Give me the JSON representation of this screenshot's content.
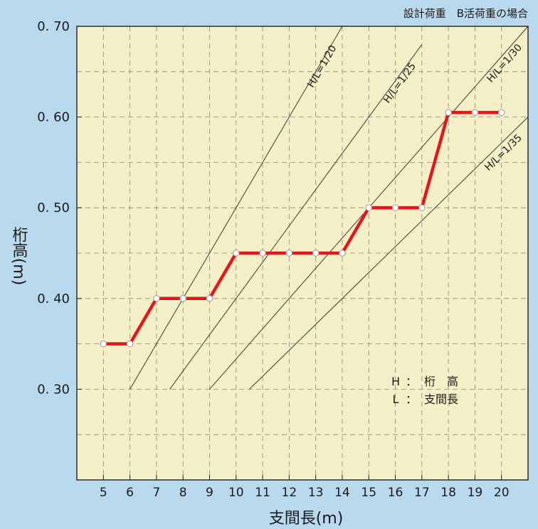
{
  "chart_data": {
    "type": "line",
    "subtitle": "設計荷重　B活荷重の場合",
    "xlabel": "支間長(m)",
    "ylabel": "桁高(m)",
    "x_ticks": [
      5,
      6,
      7,
      8,
      9,
      10,
      11,
      12,
      13,
      14,
      15,
      16,
      17,
      18,
      19,
      20
    ],
    "y_ticks": [
      {
        "value": 0.3,
        "label": "0. 30"
      },
      {
        "value": 0.4,
        "label": "0. 40"
      },
      {
        "value": 0.5,
        "label": "0. 50"
      },
      {
        "value": 0.6,
        "label": "0. 60"
      },
      {
        "value": 0.7,
        "label": "0. 70"
      }
    ],
    "xlim": [
      4,
      21
    ],
    "ylim": [
      0.2,
      0.7
    ],
    "grid": true,
    "colors": {
      "background": "#b9d9ee",
      "plot_area": "#f4efc6",
      "series": "#e8141b",
      "grid": "#8a8a78"
    },
    "series": [
      {
        "x": [
          5,
          6,
          7,
          8,
          9,
          10,
          11,
          12,
          13,
          14,
          15,
          16,
          17,
          18,
          19,
          20
        ],
        "values": [
          0.35,
          0.35,
          0.4,
          0.4,
          0.4,
          0.45,
          0.45,
          0.45,
          0.45,
          0.45,
          0.5,
          0.5,
          0.5,
          0.605,
          0.605,
          0.605
        ]
      }
    ],
    "ratio_lines": [
      {
        "label": "H/L=1/20",
        "x": [
          6.0,
          14.0
        ],
        "y": [
          0.3,
          0.7
        ]
      },
      {
        "label": "H/L=1/25",
        "x": [
          7.5,
          17.0
        ],
        "y": [
          0.3,
          0.68
        ]
      },
      {
        "label": "H/L=1/30",
        "x": [
          9.0,
          21.0
        ],
        "y": [
          0.3,
          0.7
        ]
      },
      {
        "label": "H/L=1/35",
        "x": [
          10.5,
          21.0
        ],
        "y": [
          0.3,
          0.6
        ]
      }
    ],
    "legend": {
      "items": [
        {
          "key": "H",
          "sep": "：",
          "text": "桁　高"
        },
        {
          "key": "L",
          "sep": "：",
          "text": "支間長"
        }
      ]
    }
  }
}
